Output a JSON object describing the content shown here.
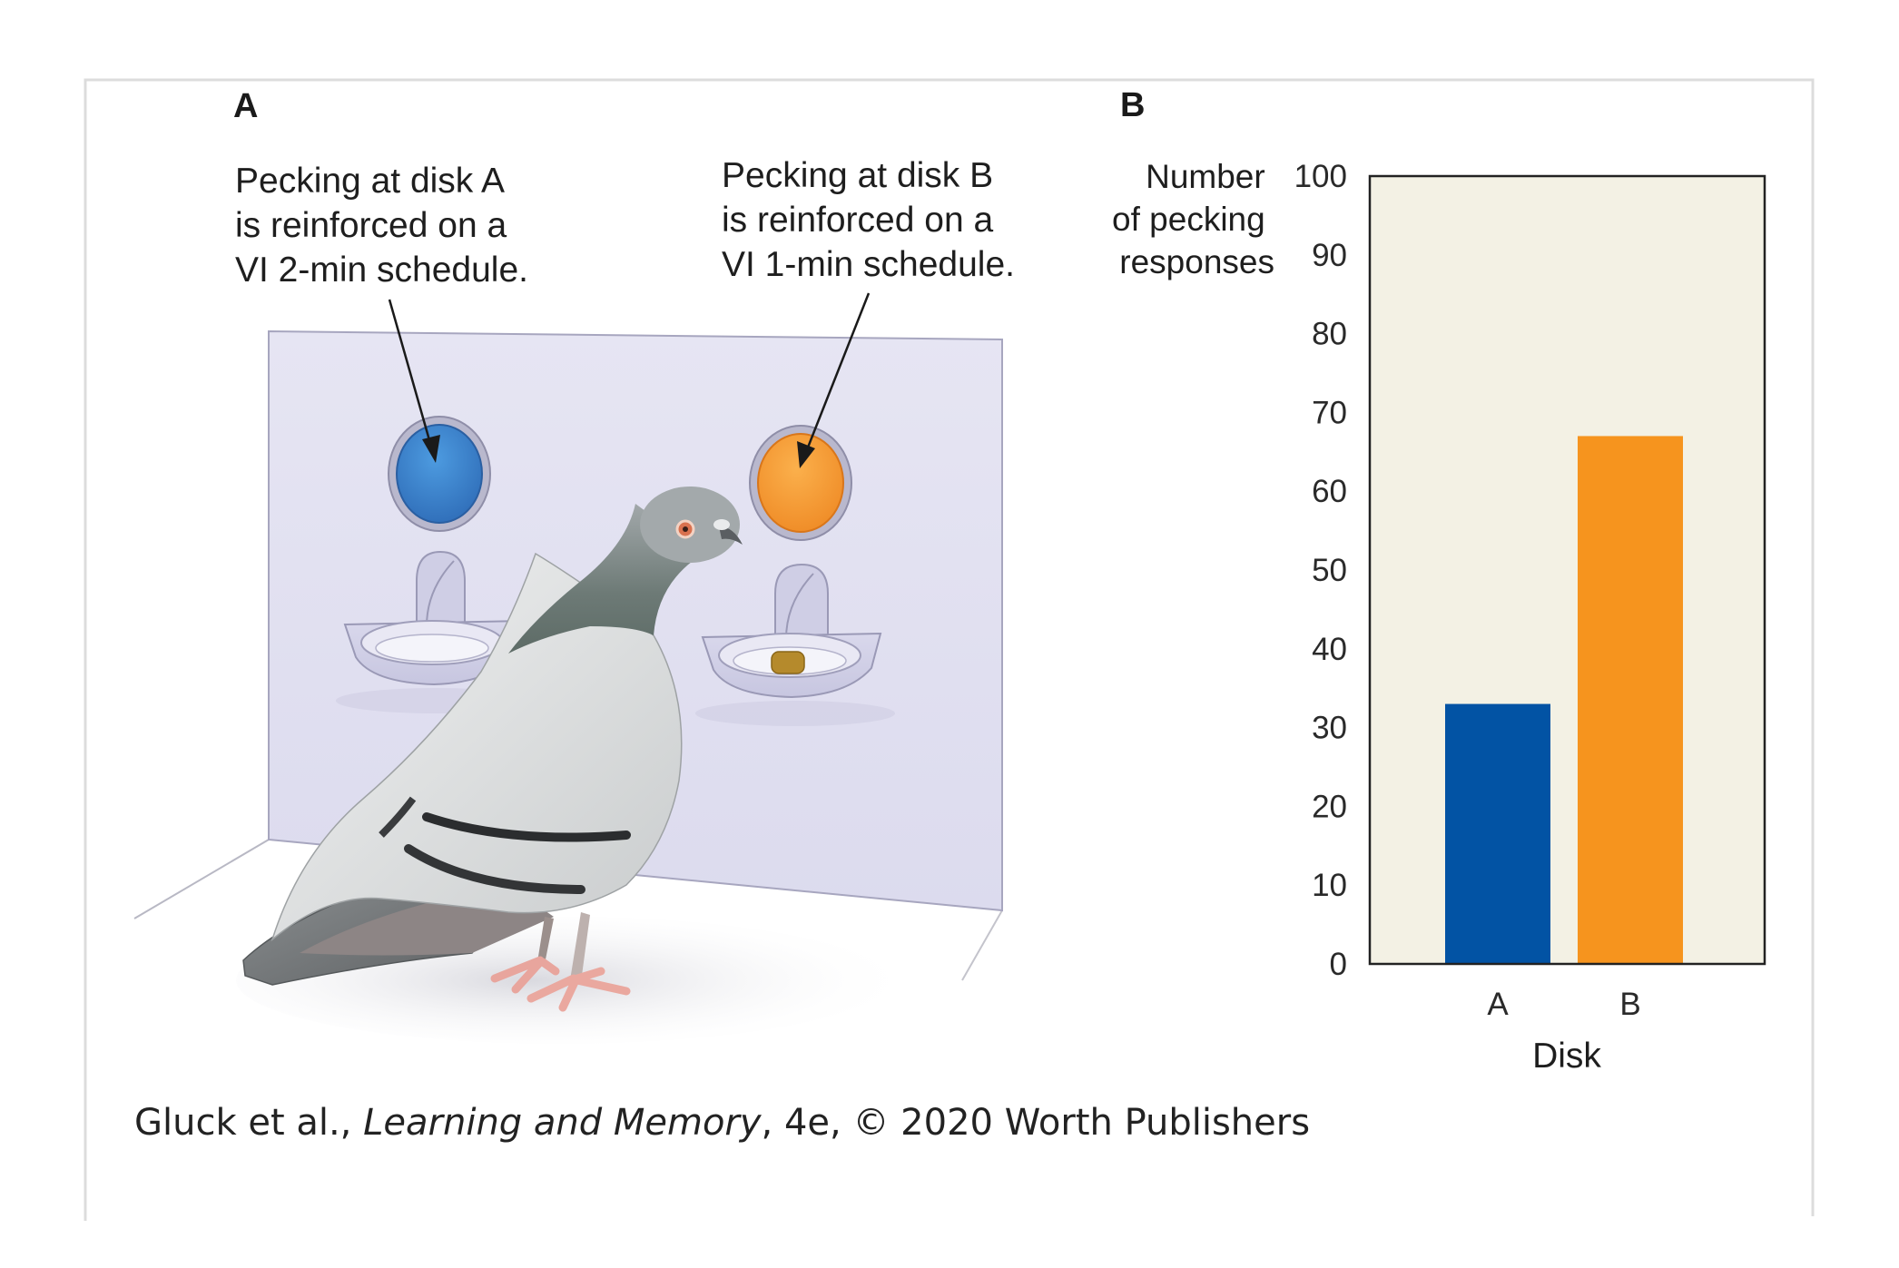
{
  "panel_a": {
    "label": "A",
    "callout_a": [
      "Pecking at disk A",
      "is reinforced on a",
      "VI 2-min schedule."
    ],
    "callout_b": [
      "Pecking at disk B",
      "is reinforced on a",
      "VI 1-min schedule."
    ],
    "disk_a_color": "#3b7fd0",
    "disk_b_color": "#f4a43a",
    "wall_color": "#e4e3f2"
  },
  "panel_b": {
    "label": "B"
  },
  "chart_data": {
    "type": "bar",
    "title": "",
    "categories": [
      "A",
      "B"
    ],
    "values": [
      33,
      67
    ],
    "colors": [
      "#0253a4",
      "#f6941e"
    ],
    "xlabel": "Disk",
    "ylabel": [
      "Number",
      "of pecking",
      "responses"
    ],
    "ylim": [
      0,
      100
    ],
    "yticks": [
      0,
      10,
      20,
      30,
      40,
      50,
      60,
      70,
      80,
      90,
      100
    ],
    "ytick_labels": [
      "0",
      "10",
      "20",
      "30",
      "40",
      "50",
      "60",
      "70",
      "80",
      "90",
      "100"
    ],
    "plot_background": "#f3f1e4",
    "grid": false,
    "legend": "none"
  },
  "citation": {
    "authors": "Gluck et al.,",
    "title": "Learning and Memory",
    "rest": ", 4e, © 2020 Worth Publishers"
  }
}
